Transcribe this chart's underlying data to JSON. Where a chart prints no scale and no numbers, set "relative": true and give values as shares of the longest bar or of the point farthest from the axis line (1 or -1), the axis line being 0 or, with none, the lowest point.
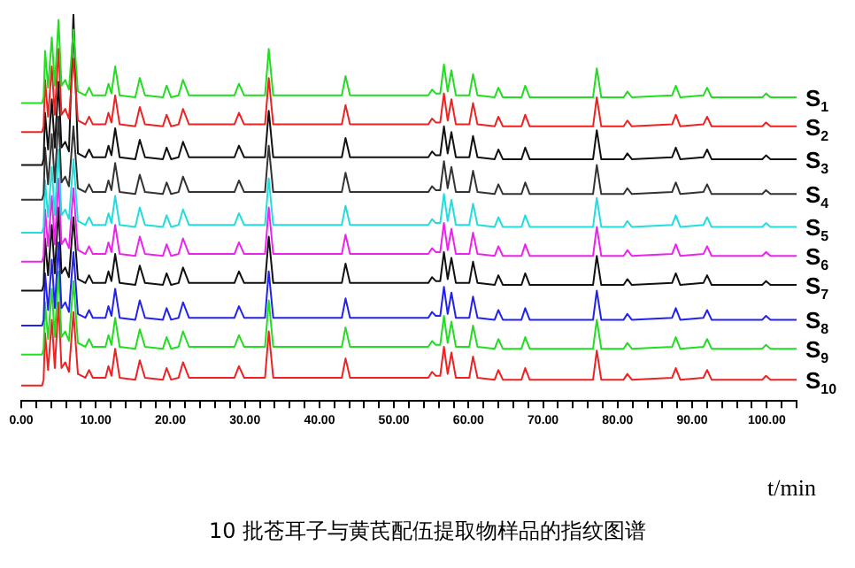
{
  "chart_data": {
    "type": "line",
    "title": "10 批苍耳子与黄芪配伍提取物样品的指纹图谱",
    "xlabel": "t/min",
    "relative": true,
    "marker": "none",
    "line_style": "solid",
    "grid": false,
    "legend": false,
    "xlim": [
      0,
      104
    ],
    "xticks": [
      {
        "value": 0,
        "label": "0.00"
      },
      {
        "value": 2,
        "label": null
      },
      {
        "value": 4,
        "label": null
      },
      {
        "value": 6,
        "label": null
      },
      {
        "value": 8,
        "label": null
      },
      {
        "value": 10,
        "label": "10.00"
      },
      {
        "value": 12,
        "label": null
      },
      {
        "value": 14,
        "label": null
      },
      {
        "value": 16,
        "label": null
      },
      {
        "value": 18,
        "label": null
      },
      {
        "value": 20,
        "label": "20.00"
      },
      {
        "value": 22,
        "label": null
      },
      {
        "value": 24,
        "label": null
      },
      {
        "value": 26,
        "label": null
      },
      {
        "value": 28,
        "label": null
      },
      {
        "value": 30,
        "label": "30.00"
      },
      {
        "value": 32,
        "label": null
      },
      {
        "value": 34,
        "label": null
      },
      {
        "value": 36,
        "label": null
      },
      {
        "value": 38,
        "label": null
      },
      {
        "value": 40,
        "label": "40.00"
      },
      {
        "value": 42,
        "label": null
      },
      {
        "value": 44,
        "label": null
      },
      {
        "value": 46,
        "label": null
      },
      {
        "value": 48,
        "label": null
      },
      {
        "value": 50,
        "label": "50.00"
      },
      {
        "value": 52,
        "label": null
      },
      {
        "value": 54,
        "label": null
      },
      {
        "value": 56,
        "label": null
      },
      {
        "value": 58,
        "label": null
      },
      {
        "value": 60,
        "label": "60.00"
      },
      {
        "value": 62,
        "label": null
      },
      {
        "value": 64,
        "label": null
      },
      {
        "value": 66,
        "label": null
      },
      {
        "value": 68,
        "label": null
      },
      {
        "value": 70,
        "label": "70.00"
      },
      {
        "value": 72,
        "label": null
      },
      {
        "value": 74,
        "label": null
      },
      {
        "value": 76,
        "label": null
      },
      {
        "value": 78,
        "label": null
      },
      {
        "value": 80,
        "label": "80.00"
      },
      {
        "value": 82,
        "label": null
      },
      {
        "value": 84,
        "label": null
      },
      {
        "value": 86,
        "label": null
      },
      {
        "value": 88,
        "label": null
      },
      {
        "value": 90,
        "label": "90.00"
      },
      {
        "value": 92,
        "label": null
      },
      {
        "value": 94,
        "label": null
      },
      {
        "value": 96,
        "label": null
      },
      {
        "value": 98,
        "label": null
      },
      {
        "value": 100,
        "label": "100.00"
      },
      {
        "value": 102,
        "label": null
      },
      {
        "value": 104,
        "label": null
      }
    ],
    "x": [
      0,
      2.8,
      3.0,
      3.2,
      3.6,
      4.1,
      4.5,
      5.0,
      5.4,
      5.9,
      6.4,
      7.0,
      7.6,
      8.6,
      9.1,
      9.6,
      11.3,
      11.7,
      12.1,
      12.6,
      13.2,
      15.3,
      15.9,
      16.6,
      19.0,
      19.5,
      20.1,
      21.1,
      21.7,
      22.5,
      28.6,
      29.2,
      29.9,
      32.7,
      33.2,
      33.8,
      43.0,
      43.5,
      44.1,
      54.6,
      55.1,
      55.6,
      56.2,
      56.7,
      57.2,
      57.7,
      58.3,
      60.1,
      60.6,
      61.2,
      63.5,
      64.0,
      64.6,
      67.1,
      67.6,
      68.2,
      76.7,
      77.2,
      77.8,
      80.8,
      81.3,
      81.9,
      87.3,
      87.8,
      88.4,
      91.5,
      92.0,
      92.6,
      99.4,
      99.9,
      100.5,
      104
    ],
    "series": [
      {
        "name": "S$_{1}$",
        "color": "#22dd22",
        "values": [
          0.77,
          0.77,
          0.785,
          0.905,
          0.81,
          0.94,
          0.815,
          0.985,
          0.815,
          0.83,
          0.805,
          0.96,
          0.8,
          0.79,
          0.81,
          0.79,
          0.79,
          0.82,
          0.795,
          0.865,
          0.79,
          0.785,
          0.835,
          0.79,
          0.785,
          0.815,
          0.785,
          0.79,
          0.83,
          0.79,
          0.79,
          0.82,
          0.79,
          0.79,
          0.91,
          0.79,
          0.79,
          0.84,
          0.79,
          0.79,
          0.805,
          0.795,
          0.795,
          0.87,
          0.8,
          0.855,
          0.79,
          0.79,
          0.845,
          0.79,
          0.785,
          0.81,
          0.785,
          0.785,
          0.815,
          0.785,
          0.785,
          0.86,
          0.785,
          0.785,
          0.8,
          0.785,
          0.79,
          0.815,
          0.785,
          0.79,
          0.81,
          0.785,
          0.785,
          0.795,
          0.785,
          0.785
        ]
      },
      {
        "name": "S$_{2}$",
        "color": "#ee2222",
        "values": [
          0.695,
          0.695,
          0.71,
          0.83,
          0.735,
          0.865,
          0.74,
          0.91,
          0.74,
          0.755,
          0.73,
          0.885,
          0.725,
          0.715,
          0.735,
          0.715,
          0.715,
          0.745,
          0.72,
          0.79,
          0.715,
          0.71,
          0.76,
          0.715,
          0.71,
          0.74,
          0.71,
          0.715,
          0.755,
          0.715,
          0.715,
          0.745,
          0.715,
          0.715,
          0.835,
          0.715,
          0.715,
          0.765,
          0.715,
          0.715,
          0.73,
          0.72,
          0.72,
          0.795,
          0.725,
          0.78,
          0.715,
          0.715,
          0.77,
          0.715,
          0.71,
          0.735,
          0.71,
          0.71,
          0.74,
          0.71,
          0.71,
          0.785,
          0.71,
          0.71,
          0.725,
          0.71,
          0.715,
          0.74,
          0.71,
          0.715,
          0.735,
          0.71,
          0.71,
          0.72,
          0.71,
          0.71
        ]
      },
      {
        "name": "S$_{3}$",
        "color": "#111111",
        "values": [
          0.61,
          0.61,
          0.625,
          0.745,
          0.65,
          0.78,
          0.655,
          0.825,
          0.655,
          0.67,
          0.645,
          1,
          0.64,
          0.63,
          0.65,
          0.63,
          0.63,
          0.66,
          0.635,
          0.705,
          0.63,
          0.625,
          0.675,
          0.63,
          0.625,
          0.655,
          0.625,
          0.63,
          0.67,
          0.63,
          0.63,
          0.66,
          0.63,
          0.63,
          0.75,
          0.63,
          0.63,
          0.68,
          0.63,
          0.63,
          0.645,
          0.635,
          0.635,
          0.71,
          0.64,
          0.695,
          0.63,
          0.63,
          0.685,
          0.63,
          0.625,
          0.65,
          0.625,
          0.625,
          0.655,
          0.625,
          0.625,
          0.7,
          0.625,
          0.625,
          0.64,
          0.625,
          0.63,
          0.655,
          0.625,
          0.63,
          0.65,
          0.625,
          0.625,
          0.635,
          0.625,
          0.625
        ]
      },
      {
        "name": "S$_{4}$",
        "color": "#333333",
        "values": [
          0.52,
          0.52,
          0.535,
          0.655,
          0.56,
          0.69,
          0.565,
          0.735,
          0.565,
          0.58,
          0.555,
          0.71,
          0.55,
          0.54,
          0.56,
          0.54,
          0.54,
          0.57,
          0.545,
          0.615,
          0.54,
          0.535,
          0.585,
          0.54,
          0.535,
          0.565,
          0.535,
          0.54,
          0.58,
          0.54,
          0.54,
          0.57,
          0.54,
          0.54,
          0.66,
          0.54,
          0.54,
          0.59,
          0.54,
          0.54,
          0.555,
          0.545,
          0.545,
          0.62,
          0.55,
          0.605,
          0.54,
          0.54,
          0.595,
          0.54,
          0.535,
          0.56,
          0.535,
          0.535,
          0.565,
          0.535,
          0.535,
          0.61,
          0.535,
          0.535,
          0.55,
          0.535,
          0.54,
          0.565,
          0.535,
          0.54,
          0.56,
          0.535,
          0.535,
          0.545,
          0.535,
          0.535
        ]
      },
      {
        "name": "S$_{5}$",
        "color": "#22dddd",
        "values": [
          0.435,
          0.435,
          0.45,
          0.57,
          0.475,
          0.605,
          0.48,
          0.65,
          0.48,
          0.495,
          0.47,
          0.625,
          0.465,
          0.455,
          0.475,
          0.455,
          0.455,
          0.485,
          0.46,
          0.53,
          0.455,
          0.45,
          0.5,
          0.455,
          0.45,
          0.48,
          0.45,
          0.455,
          0.495,
          0.455,
          0.455,
          0.485,
          0.455,
          0.455,
          0.575,
          0.455,
          0.455,
          0.505,
          0.455,
          0.455,
          0.47,
          0.46,
          0.46,
          0.535,
          0.465,
          0.52,
          0.455,
          0.455,
          0.51,
          0.455,
          0.45,
          0.475,
          0.45,
          0.45,
          0.48,
          0.45,
          0.45,
          0.525,
          0.45,
          0.45,
          0.465,
          0.45,
          0.455,
          0.48,
          0.45,
          0.455,
          0.475,
          0.45,
          0.45,
          0.46,
          0.45,
          0.45
        ]
      },
      {
        "name": "S$_{6}$",
        "color": "#ee22ee",
        "values": [
          0.36,
          0.36,
          0.375,
          0.495,
          0.4,
          0.53,
          0.405,
          0.575,
          0.405,
          0.42,
          0.395,
          0.55,
          0.39,
          0.38,
          0.4,
          0.38,
          0.38,
          0.41,
          0.385,
          0.455,
          0.38,
          0.375,
          0.425,
          0.38,
          0.375,
          0.405,
          0.375,
          0.38,
          0.42,
          0.38,
          0.38,
          0.41,
          0.38,
          0.38,
          0.5,
          0.38,
          0.38,
          0.43,
          0.38,
          0.38,
          0.395,
          0.385,
          0.385,
          0.46,
          0.39,
          0.445,
          0.38,
          0.38,
          0.435,
          0.38,
          0.375,
          0.4,
          0.375,
          0.375,
          0.405,
          0.375,
          0.375,
          0.45,
          0.375,
          0.375,
          0.39,
          0.375,
          0.38,
          0.405,
          0.375,
          0.38,
          0.4,
          0.375,
          0.375,
          0.385,
          0.375,
          0.375
        ]
      },
      {
        "name": "S$_{7}$",
        "color": "#111111",
        "values": [
          0.285,
          0.285,
          0.3,
          0.42,
          0.325,
          0.455,
          0.33,
          0.5,
          0.33,
          0.345,
          0.32,
          0.475,
          0.315,
          0.305,
          0.325,
          0.305,
          0.305,
          0.335,
          0.31,
          0.38,
          0.305,
          0.3,
          0.35,
          0.305,
          0.3,
          0.33,
          0.3,
          0.305,
          0.345,
          0.305,
          0.305,
          0.335,
          0.305,
          0.305,
          0.425,
          0.305,
          0.305,
          0.355,
          0.305,
          0.305,
          0.32,
          0.31,
          0.31,
          0.385,
          0.315,
          0.37,
          0.305,
          0.305,
          0.36,
          0.305,
          0.3,
          0.325,
          0.3,
          0.3,
          0.33,
          0.3,
          0.3,
          0.375,
          0.3,
          0.3,
          0.315,
          0.3,
          0.305,
          0.33,
          0.3,
          0.305,
          0.325,
          0.3,
          0.3,
          0.31,
          0.3,
          0.3
        ]
      },
      {
        "name": "S$_{8}$",
        "color": "#2222ee",
        "values": [
          0.195,
          0.195,
          0.21,
          0.33,
          0.235,
          0.365,
          0.24,
          0.41,
          0.24,
          0.255,
          0.23,
          0.385,
          0.225,
          0.215,
          0.235,
          0.215,
          0.215,
          0.245,
          0.22,
          0.29,
          0.215,
          0.21,
          0.26,
          0.215,
          0.21,
          0.24,
          0.21,
          0.215,
          0.255,
          0.215,
          0.215,
          0.245,
          0.215,
          0.215,
          0.335,
          0.215,
          0.215,
          0.265,
          0.215,
          0.215,
          0.23,
          0.22,
          0.22,
          0.295,
          0.225,
          0.28,
          0.215,
          0.215,
          0.27,
          0.215,
          0.21,
          0.235,
          0.21,
          0.21,
          0.24,
          0.21,
          0.21,
          0.285,
          0.21,
          0.21,
          0.225,
          0.21,
          0.215,
          0.24,
          0.21,
          0.215,
          0.235,
          0.21,
          0.21,
          0.22,
          0.21,
          0.21
        ]
      },
      {
        "name": "S$_{9}$",
        "color": "#22dd22",
        "values": [
          0.12,
          0.12,
          0.135,
          0.255,
          0.16,
          0.29,
          0.165,
          0.335,
          0.165,
          0.18,
          0.155,
          0.31,
          0.15,
          0.14,
          0.16,
          0.14,
          0.14,
          0.17,
          0.145,
          0.215,
          0.14,
          0.135,
          0.185,
          0.14,
          0.135,
          0.165,
          0.135,
          0.14,
          0.18,
          0.14,
          0.14,
          0.17,
          0.14,
          0.14,
          0.26,
          0.14,
          0.14,
          0.19,
          0.14,
          0.14,
          0.155,
          0.145,
          0.145,
          0.22,
          0.15,
          0.205,
          0.14,
          0.14,
          0.195,
          0.14,
          0.135,
          0.16,
          0.135,
          0.135,
          0.165,
          0.135,
          0.135,
          0.21,
          0.135,
          0.135,
          0.15,
          0.135,
          0.14,
          0.165,
          0.135,
          0.14,
          0.16,
          0.135,
          0.135,
          0.145,
          0.135,
          0.135
        ]
      },
      {
        "name": "S$_{10}$",
        "color": "#ee2222",
        "values": [
          0.04,
          0.04,
          0.055,
          0.175,
          0.08,
          0.21,
          0.085,
          0.255,
          0.085,
          0.1,
          0.075,
          0.23,
          0.07,
          0.06,
          0.08,
          0.06,
          0.06,
          0.09,
          0.065,
          0.135,
          0.06,
          0.055,
          0.105,
          0.06,
          0.055,
          0.085,
          0.055,
          0.06,
          0.1,
          0.06,
          0.06,
          0.09,
          0.06,
          0.06,
          0.18,
          0.06,
          0.06,
          0.11,
          0.06,
          0.06,
          0.075,
          0.065,
          0.065,
          0.14,
          0.07,
          0.125,
          0.06,
          0.06,
          0.115,
          0.06,
          0.055,
          0.08,
          0.055,
          0.055,
          0.085,
          0.055,
          0.055,
          0.13,
          0.055,
          0.055,
          0.07,
          0.055,
          0.06,
          0.085,
          0.055,
          0.06,
          0.08,
          0.055,
          0.055,
          0.065,
          0.055,
          0.055
        ]
      }
    ]
  }
}
